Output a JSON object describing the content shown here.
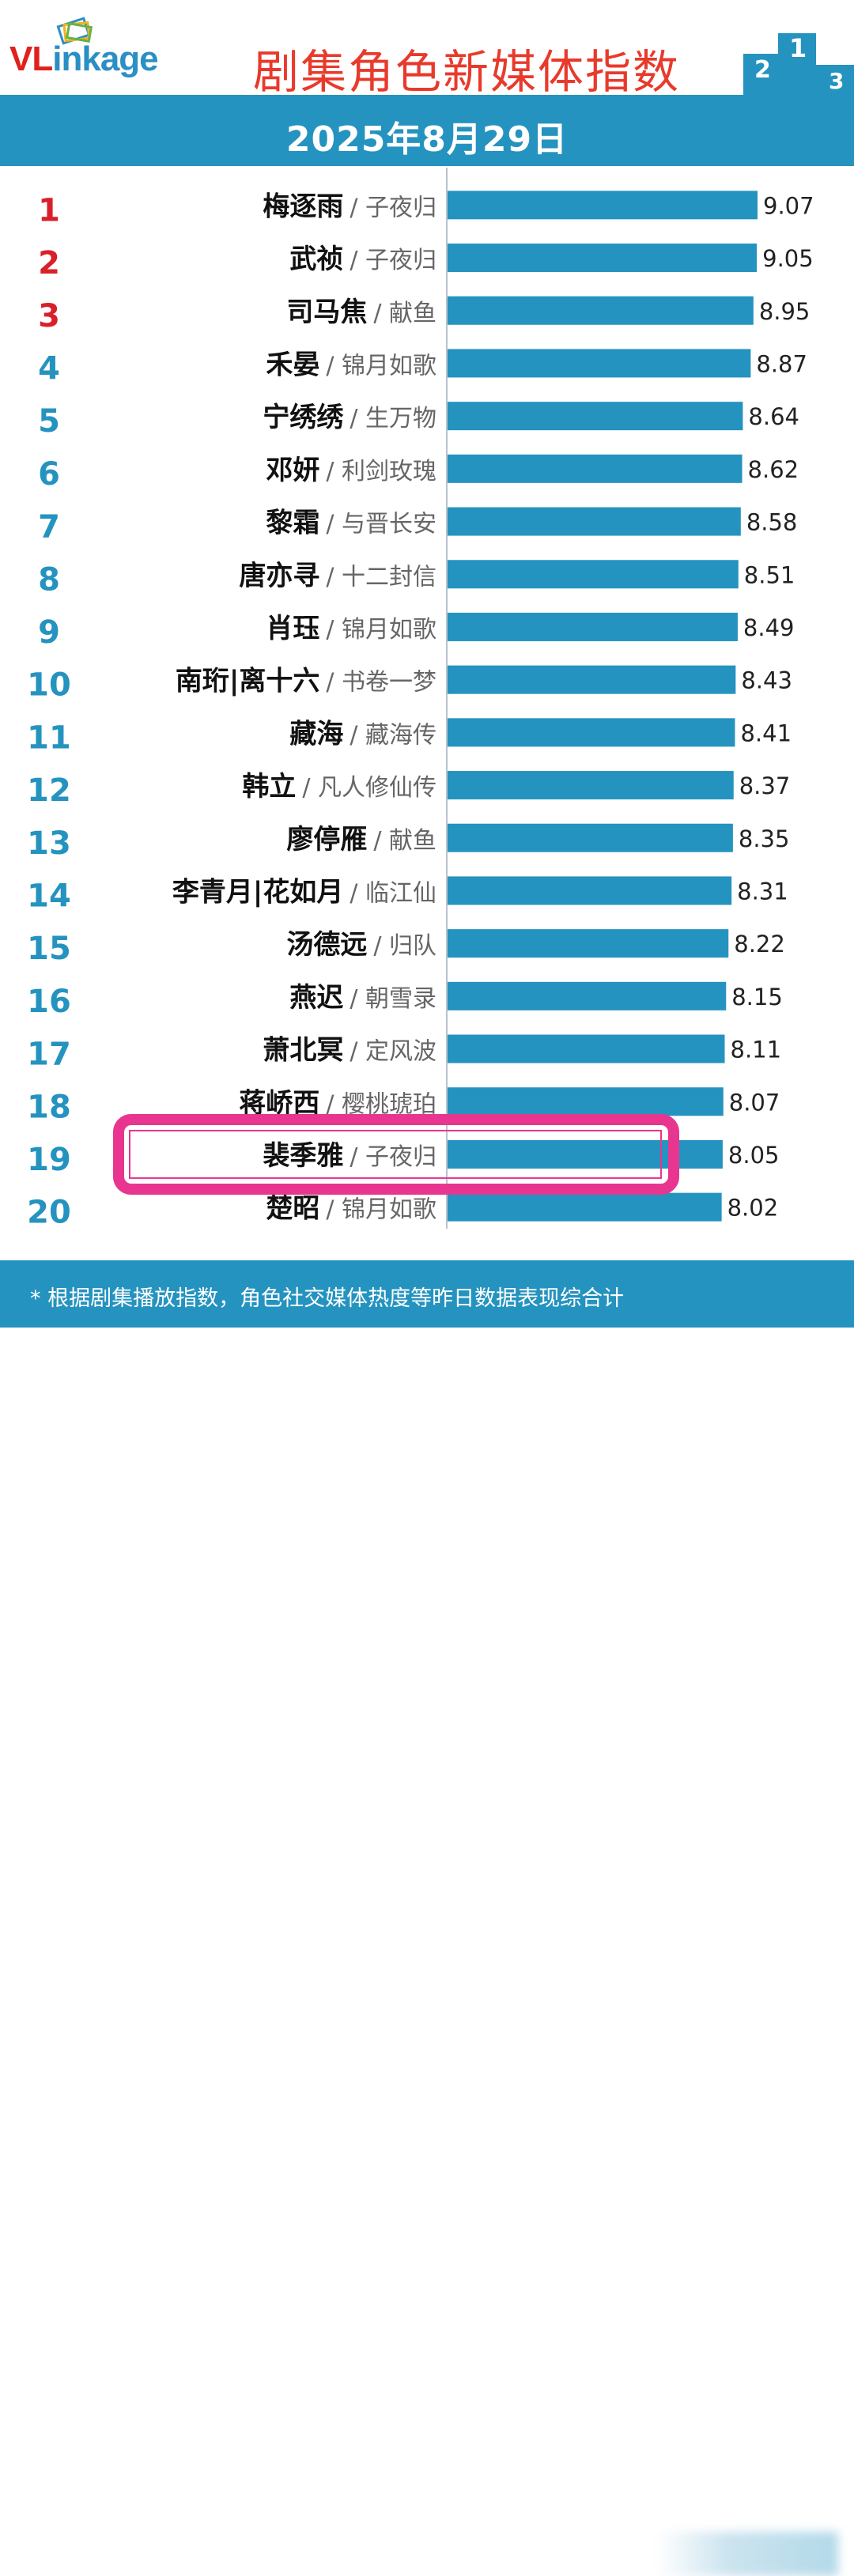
{
  "header": {
    "logo_text": "VLinkage",
    "title": "剧集角色新媒体指数",
    "podium_labels": [
      "2",
      "1",
      "3"
    ]
  },
  "date": "2025年8月29日",
  "footer": {
    "note": "* 根据剧集播放指数，角色社交媒体热度等昨日数据表现综合计"
  },
  "colors": {
    "bar": "#2593bf",
    "rank_top3": "#d9202a",
    "rank_other": "#2593bf",
    "highlight_box": "#e8358f",
    "title": "#e83a2c"
  },
  "highlight_rank": 19,
  "chart_data": {
    "type": "bar",
    "orientation": "horizontal",
    "title": "剧集角色新媒体指数",
    "xlabel": "",
    "ylabel": "",
    "xlim": [
      0,
      9.07
    ],
    "grid": false,
    "categories": [
      {
        "rank": "1",
        "character": "梅逐雨",
        "drama": "子夜归"
      },
      {
        "rank": "2",
        "character": "武祯",
        "drama": "子夜归"
      },
      {
        "rank": "3",
        "character": "司马焦",
        "drama": "献鱼"
      },
      {
        "rank": "4",
        "character": "禾晏",
        "drama": "锦月如歌"
      },
      {
        "rank": "5",
        "character": "宁绣绣",
        "drama": "生万物"
      },
      {
        "rank": "6",
        "character": "邓妍",
        "drama": "利剑玫瑰"
      },
      {
        "rank": "7",
        "character": "黎霜",
        "drama": "与晋长安"
      },
      {
        "rank": "8",
        "character": "唐亦寻",
        "drama": "十二封信"
      },
      {
        "rank": "9",
        "character": "肖珏",
        "drama": "锦月如歌"
      },
      {
        "rank": "10",
        "character": "南珩|离十六",
        "drama": "书卷一梦"
      },
      {
        "rank": "11",
        "character": "藏海",
        "drama": "藏海传"
      },
      {
        "rank": "12",
        "character": "韩立",
        "drama": "凡人修仙传"
      },
      {
        "rank": "13",
        "character": "廖停雁",
        "drama": "献鱼"
      },
      {
        "rank": "14",
        "character": "李青月|花如月",
        "drama": "临江仙"
      },
      {
        "rank": "15",
        "character": "汤德远",
        "drama": "归队"
      },
      {
        "rank": "16",
        "character": "燕迟",
        "drama": "朝雪录"
      },
      {
        "rank": "17",
        "character": "萧北冥",
        "drama": "定风波"
      },
      {
        "rank": "18",
        "character": "蒋峤西",
        "drama": "樱桃琥珀"
      },
      {
        "rank": "19",
        "character": "裴季雅",
        "drama": "子夜归"
      },
      {
        "rank": "20",
        "character": "楚昭",
        "drama": "锦月如歌"
      }
    ],
    "values": [
      9.07,
      9.05,
      8.95,
      8.87,
      8.64,
      8.62,
      8.58,
      8.51,
      8.49,
      8.43,
      8.41,
      8.37,
      8.35,
      8.31,
      8.22,
      8.15,
      8.11,
      8.07,
      8.05,
      8.02
    ],
    "value_labels": [
      "9.07",
      "9.05",
      "8.95",
      "8.87",
      "8.64",
      "8.62",
      "8.58",
      "8.51",
      "8.49",
      "8.43",
      "8.41",
      "8.37",
      "8.35",
      "8.31",
      "8.22",
      "8.15",
      "8.11",
      "8.07",
      "8.05",
      "8.02"
    ]
  }
}
